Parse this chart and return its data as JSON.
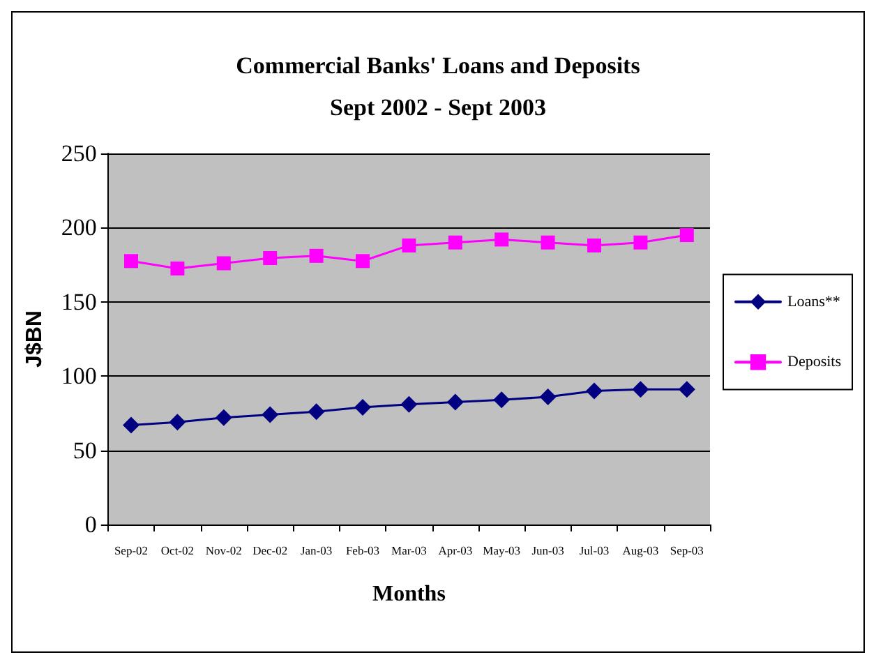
{
  "chart_data": {
    "type": "line",
    "title": "Commercial Banks' Loans and Deposits\nSept 2002 - Sept 2003",
    "xlabel": "Months",
    "ylabel": "J$BN",
    "categories": [
      "Sep-02",
      "Oct-02",
      "Nov-02",
      "Dec-02",
      "Jan-03",
      "Feb-03",
      "Mar-03",
      "Apr-03",
      "May-03",
      "Jun-03",
      "Jul-03",
      "Aug-03",
      "Sep-03"
    ],
    "series": [
      {
        "name": "Loans**",
        "color": "#000080",
        "marker": "diamond",
        "values": [
          67,
          69,
          72,
          74,
          76,
          79,
          81,
          82.5,
          84,
          86,
          90,
          91,
          91
        ]
      },
      {
        "name": "Deposits",
        "color": "#ff00ff",
        "marker": "square",
        "values": [
          177.5,
          172.5,
          176,
          179.5,
          181,
          177.5,
          188,
          190,
          192,
          190,
          188,
          190,
          195
        ]
      }
    ],
    "ylim": [
      0,
      250
    ],
    "yticks": [
      0,
      50,
      100,
      150,
      200,
      250
    ],
    "grid": "y",
    "legend": "right",
    "line_style": "solid"
  }
}
